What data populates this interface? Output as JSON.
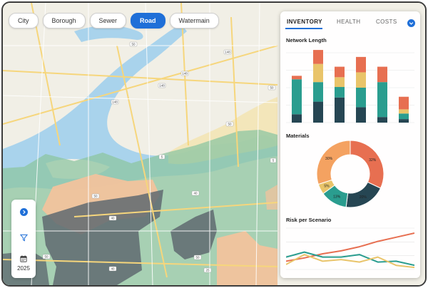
{
  "layers": [
    {
      "label": "City",
      "active": false
    },
    {
      "label": "Borough",
      "active": false
    },
    {
      "label": "Sewer",
      "active": false
    },
    {
      "label": "Road",
      "active": true
    },
    {
      "label": "Watermain",
      "active": false
    }
  ],
  "map": {
    "road_labels": [
      "50",
      "148",
      "148",
      "148",
      "148",
      "50",
      "50",
      "5",
      "5",
      "50",
      "40",
      "40",
      "50",
      "40",
      "25",
      "50"
    ]
  },
  "tools": {
    "expand_icon": "chevron-right-icon",
    "filter_icon": "filter-icon",
    "calendar_icon": "calendar-icon",
    "year": "2025"
  },
  "panel": {
    "tabs": [
      {
        "label": "INVENTORY",
        "active": true
      },
      {
        "label": "HEALTH",
        "active": false
      },
      {
        "label": "COSTS",
        "active": false
      }
    ],
    "menu_icon": "chevron-down-icon",
    "sections": {
      "network_length": "Network Length",
      "materials": "Materials",
      "risk": "Risk per Scenario"
    }
  },
  "colors": {
    "accent": "#1f6fd8",
    "teal": "#2a9d8f",
    "dark_slate": "#264653",
    "sand": "#e9c46a",
    "orange": "#f4a261",
    "coral": "#e76f51"
  },
  "chart_data": [
    {
      "type": "bar",
      "title": "Network Length",
      "stacked": true,
      "categories": [
        "",
        "",
        "",
        "",
        "",
        ""
      ],
      "ylim": [
        0,
        100
      ],
      "series": [
        {
          "color": "#264653",
          "values": [
            12,
            30,
            36,
            22,
            8,
            5
          ]
        },
        {
          "color": "#2a9d8f",
          "values": [
            50,
            28,
            15,
            28,
            50,
            8
          ]
        },
        {
          "color": "#e9c46a",
          "values": [
            0,
            26,
            14,
            22,
            0,
            6
          ]
        },
        {
          "color": "#e76f51",
          "values": [
            5,
            20,
            15,
            22,
            22,
            18
          ]
        }
      ]
    },
    {
      "type": "pie",
      "title": "Materials",
      "donut": true,
      "slices": [
        {
          "label": "32%",
          "value": 32,
          "color": "#e76f51"
        },
        {
          "label": "20%",
          "value": 20,
          "color": "#264653"
        },
        {
          "label": "13%",
          "value": 13,
          "color": "#2a9d8f"
        },
        {
          "label": "5%",
          "value": 5,
          "color": "#e9c46a"
        },
        {
          "label": "30%",
          "value": 30,
          "color": "#f4a261"
        }
      ]
    },
    {
      "type": "line",
      "title": "Risk per Scenario",
      "x": [
        0,
        1,
        2,
        3,
        4,
        5,
        6,
        7
      ],
      "ylim": [
        0,
        100
      ],
      "series": [
        {
          "color": "#e76f51",
          "values": [
            20,
            28,
            38,
            45,
            55,
            68,
            78,
            88
          ]
        },
        {
          "color": "#2a9d8f",
          "values": [
            30,
            42,
            30,
            30,
            36,
            18,
            20,
            10
          ]
        },
        {
          "color": "#e9c46a",
          "values": [
            12,
            36,
            20,
            24,
            18,
            30,
            10,
            5
          ]
        }
      ]
    }
  ]
}
